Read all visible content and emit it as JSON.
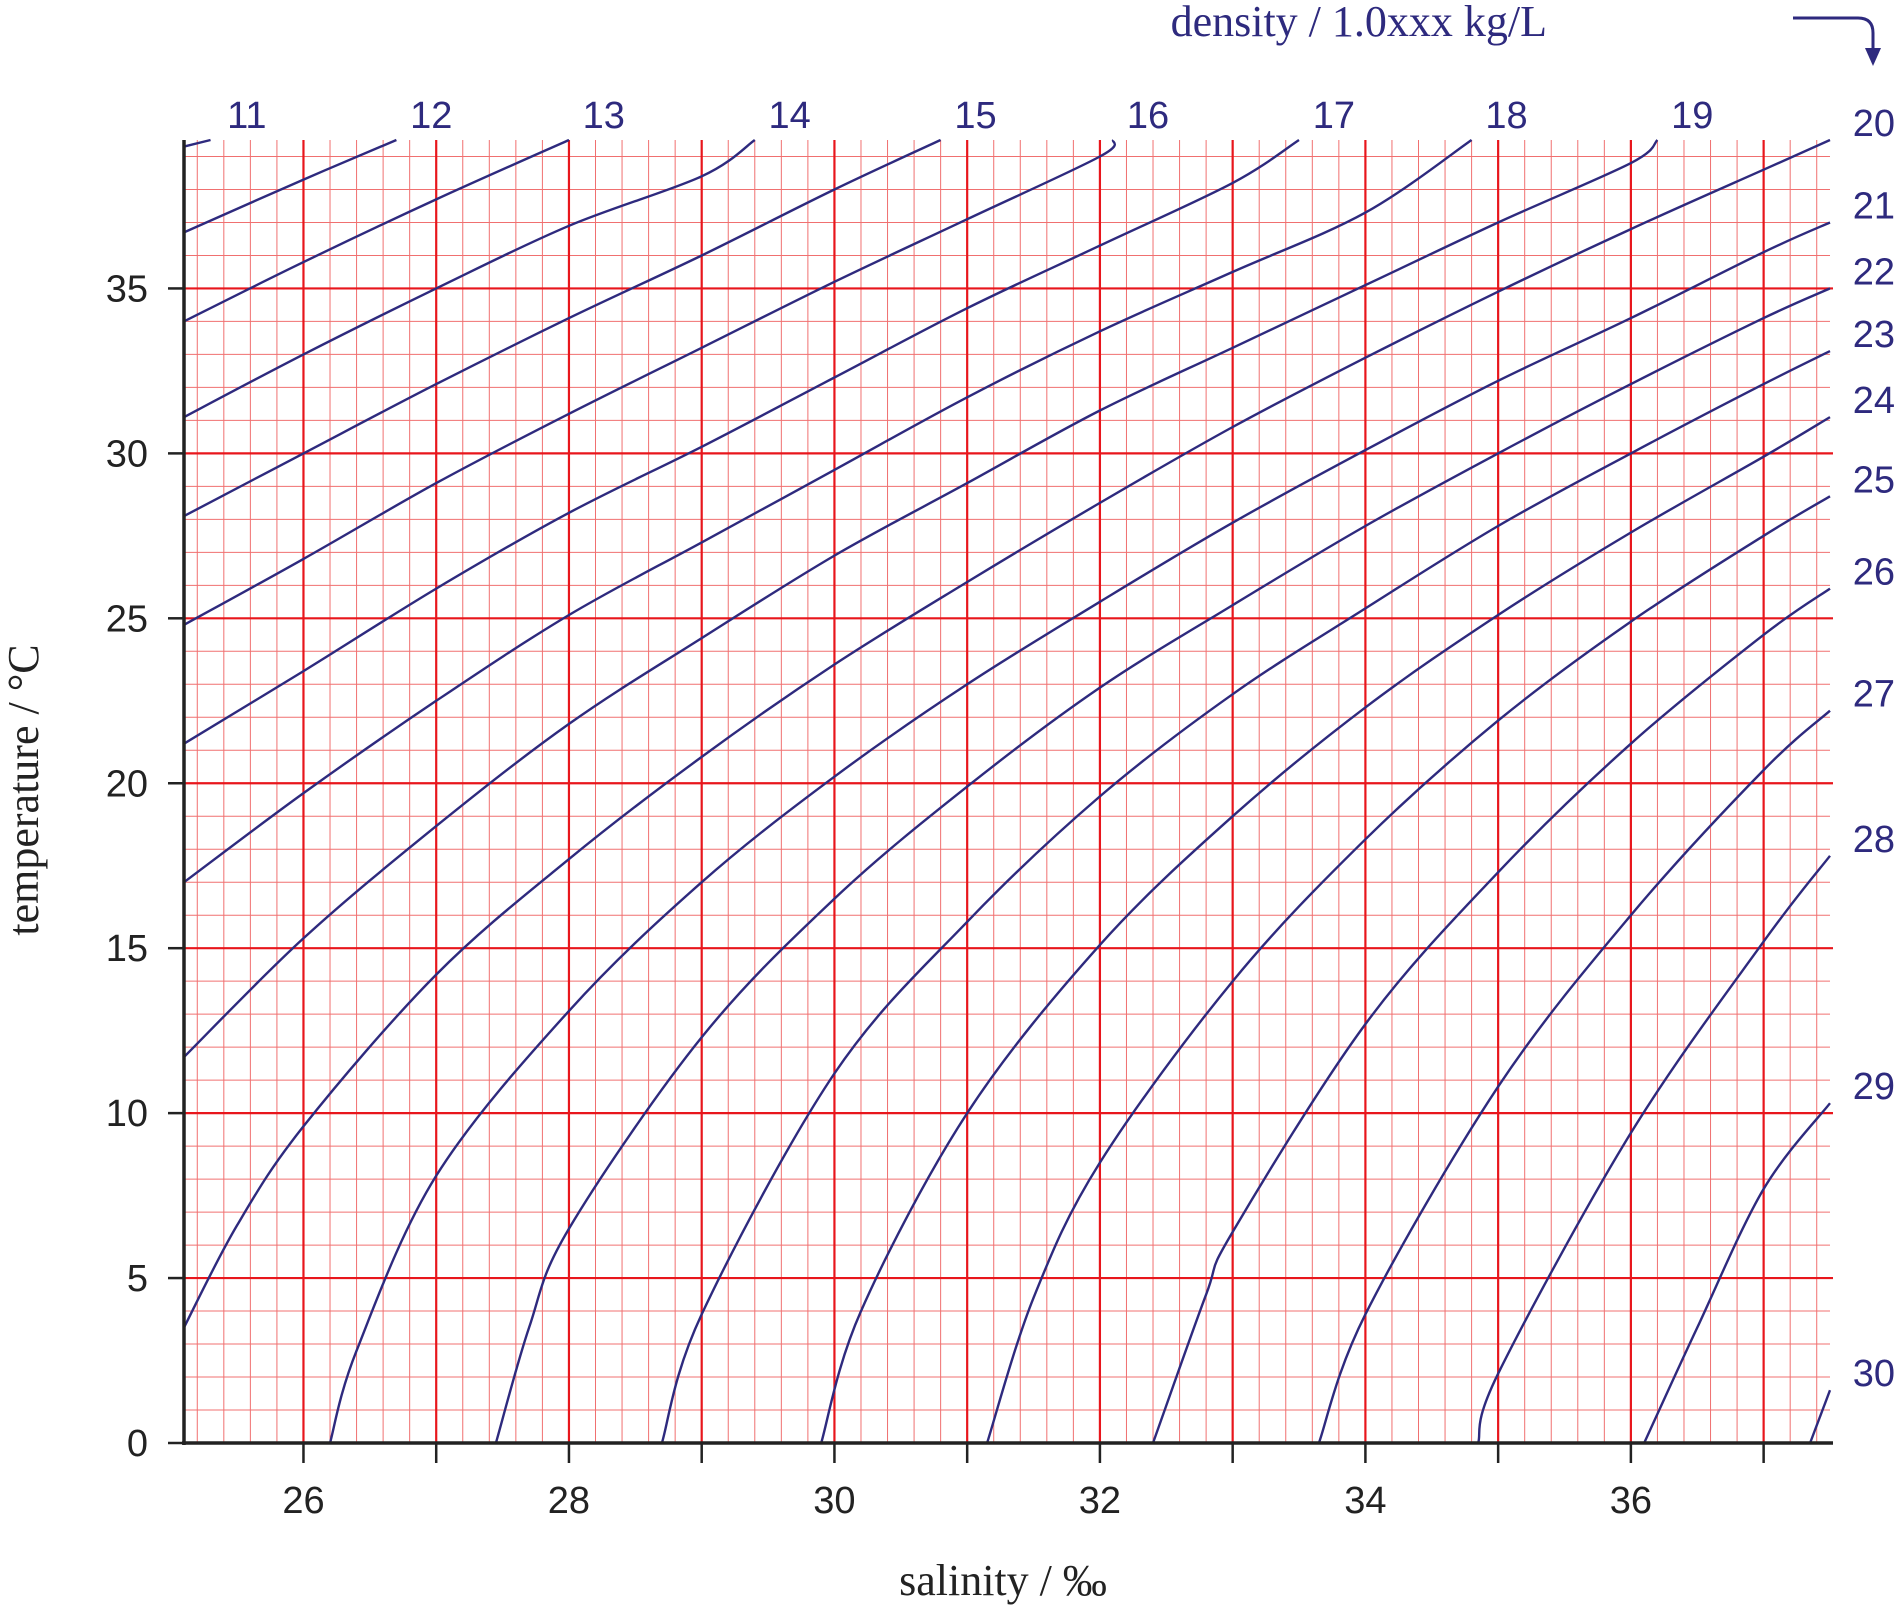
{
  "colors": {
    "grid_major": "#e8161c",
    "grid_minor": "#f07070",
    "curve": "#2e2a7e",
    "axis": "#222222"
  },
  "chart_data": {
    "type": "line",
    "xlabel": "salinity / ‰",
    "ylabel": "temperature / °C",
    "density_label": "density / 1.0xxx kg/L",
    "xlim": [
      25.1,
      37.5
    ],
    "ylim": [
      0,
      39.5
    ],
    "x_ticks": [
      26,
      28,
      30,
      32,
      34,
      36
    ],
    "y_ticks": [
      0,
      5,
      10,
      15,
      20,
      25,
      30,
      35
    ],
    "grid": "major every 1 ‰ and 5 °C, minor every 0.2 ‰ and 1 °C",
    "series_style": "isopycnals (lines of constant density)",
    "series": [
      {
        "name": "11",
        "points": [
          [
            25.1,
            39.3
          ],
          [
            25.3,
            39.5
          ]
        ]
      },
      {
        "name": "12",
        "points": [
          [
            25.1,
            36.7
          ],
          [
            26.0,
            38.3
          ],
          [
            26.7,
            39.5
          ]
        ]
      },
      {
        "name": "13",
        "points": [
          [
            25.1,
            34.0
          ],
          [
            26.0,
            35.8
          ],
          [
            27.0,
            37.7
          ],
          [
            28.0,
            39.5
          ]
        ]
      },
      {
        "name": "14",
        "points": [
          [
            25.1,
            31.1
          ],
          [
            26.0,
            33.0
          ],
          [
            27.0,
            35.0
          ],
          [
            28.0,
            36.9
          ],
          [
            29.0,
            38.4
          ],
          [
            29.4,
            39.5
          ]
        ]
      },
      {
        "name": "15",
        "points": [
          [
            25.1,
            28.1
          ],
          [
            26.0,
            30.0
          ],
          [
            27.0,
            32.1
          ],
          [
            28.0,
            34.1
          ],
          [
            29.0,
            36.0
          ],
          [
            30.0,
            38.0
          ],
          [
            30.8,
            39.5
          ]
        ]
      },
      {
        "name": "16",
        "points": [
          [
            25.1,
            24.8
          ],
          [
            26.0,
            26.8
          ],
          [
            27.0,
            29.1
          ],
          [
            28.0,
            31.2
          ],
          [
            29.0,
            33.2
          ],
          [
            30.0,
            35.2
          ],
          [
            31.0,
            37.1
          ],
          [
            32.0,
            39.0
          ],
          [
            32.1,
            39.5
          ]
        ]
      },
      {
        "name": "17",
        "points": [
          [
            25.1,
            21.2
          ],
          [
            26.0,
            23.4
          ],
          [
            27.0,
            25.9
          ],
          [
            28.0,
            28.2
          ],
          [
            29.0,
            30.2
          ],
          [
            30.0,
            32.3
          ],
          [
            31.0,
            34.4
          ],
          [
            32.0,
            36.3
          ],
          [
            33.0,
            38.2
          ],
          [
            33.5,
            39.5
          ]
        ]
      },
      {
        "name": "18",
        "points": [
          [
            25.1,
            17.0
          ],
          [
            26.0,
            19.7
          ],
          [
            27.0,
            22.5
          ],
          [
            28.0,
            25.1
          ],
          [
            29.0,
            27.3
          ],
          [
            30.0,
            29.5
          ],
          [
            31.0,
            31.7
          ],
          [
            32.0,
            33.7
          ],
          [
            33.0,
            35.5
          ],
          [
            34.0,
            37.3
          ],
          [
            34.8,
            39.5
          ]
        ]
      },
      {
        "name": "19",
        "points": [
          [
            25.1,
            11.7
          ],
          [
            26.0,
            15.3
          ],
          [
            27.0,
            18.7
          ],
          [
            28.0,
            21.8
          ],
          [
            29.0,
            24.4
          ],
          [
            30.0,
            26.9
          ],
          [
            31.0,
            29.1
          ],
          [
            32.0,
            31.3
          ],
          [
            33.0,
            33.2
          ],
          [
            34.0,
            35.1
          ],
          [
            35.0,
            37.0
          ],
          [
            36.0,
            38.8
          ],
          [
            36.2,
            39.5
          ]
        ]
      },
      {
        "name": "20",
        "points": [
          [
            25.1,
            3.5
          ],
          [
            25.5,
            6.6
          ],
          [
            26.0,
            9.6
          ],
          [
            27.0,
            14.2
          ],
          [
            28.0,
            17.7
          ],
          [
            29.0,
            20.8
          ],
          [
            30.0,
            23.6
          ],
          [
            31.0,
            26.1
          ],
          [
            32.0,
            28.5
          ],
          [
            33.0,
            30.8
          ],
          [
            34.0,
            32.9
          ],
          [
            35.0,
            34.9
          ],
          [
            36.0,
            36.8
          ],
          [
            37.0,
            38.6
          ],
          [
            37.5,
            39.5
          ]
        ]
      },
      {
        "name": "21",
        "points": [
          [
            26.2,
            0.0
          ],
          [
            26.4,
            2.8
          ],
          [
            27.0,
            8.1
          ],
          [
            28.0,
            13.1
          ],
          [
            29.0,
            17.0
          ],
          [
            30.0,
            20.2
          ],
          [
            31.0,
            23.0
          ],
          [
            32.0,
            25.5
          ],
          [
            33.0,
            27.9
          ],
          [
            34.0,
            30.1
          ],
          [
            35.0,
            32.2
          ],
          [
            36.0,
            34.1
          ],
          [
            37.0,
            36.1
          ],
          [
            37.5,
            37.0
          ]
        ]
      },
      {
        "name": "22",
        "points": [
          [
            27.45,
            0.0
          ],
          [
            27.7,
            3.5
          ],
          [
            28.0,
            6.5
          ],
          [
            29.0,
            12.3
          ],
          [
            30.0,
            16.5
          ],
          [
            31.0,
            19.9
          ],
          [
            32.0,
            22.9
          ],
          [
            33.0,
            25.4
          ],
          [
            34.0,
            27.8
          ],
          [
            35.0,
            30.0
          ],
          [
            36.0,
            32.1
          ],
          [
            37.0,
            34.1
          ],
          [
            37.5,
            35.0
          ]
        ]
      },
      {
        "name": "23",
        "points": [
          [
            28.7,
            0.0
          ],
          [
            29.0,
            3.9
          ],
          [
            30.0,
            11.2
          ],
          [
            31.0,
            15.8
          ],
          [
            32.0,
            19.6
          ],
          [
            33.0,
            22.7
          ],
          [
            34.0,
            25.3
          ],
          [
            35.0,
            27.8
          ],
          [
            36.0,
            30.0
          ],
          [
            37.0,
            32.1
          ],
          [
            37.5,
            33.1
          ]
        ]
      },
      {
        "name": "24",
        "points": [
          [
            29.9,
            0.0
          ],
          [
            30.2,
            4.0
          ],
          [
            31.0,
            10.0
          ],
          [
            32.0,
            15.1
          ],
          [
            33.0,
            19.0
          ],
          [
            34.0,
            22.3
          ],
          [
            35.0,
            25.1
          ],
          [
            36.0,
            27.6
          ],
          [
            37.0,
            29.9
          ],
          [
            37.5,
            31.1
          ]
        ]
      },
      {
        "name": "25",
        "points": [
          [
            31.15,
            0.0
          ],
          [
            31.5,
            4.4
          ],
          [
            32.0,
            8.5
          ],
          [
            33.0,
            14.0
          ],
          [
            34.0,
            18.3
          ],
          [
            35.0,
            21.9
          ],
          [
            36.0,
            24.9
          ],
          [
            37.0,
            27.5
          ],
          [
            37.5,
            28.7
          ]
        ]
      },
      {
        "name": "26",
        "points": [
          [
            32.4,
            0.0
          ],
          [
            32.8,
            4.5
          ],
          [
            33.0,
            6.4
          ],
          [
            34.0,
            12.7
          ],
          [
            35.0,
            17.3
          ],
          [
            36.0,
            21.2
          ],
          [
            37.0,
            24.5
          ],
          [
            37.5,
            25.9
          ]
        ]
      },
      {
        "name": "27",
        "points": [
          [
            33.65,
            0.0
          ],
          [
            34.0,
            3.9
          ],
          [
            35.0,
            10.8
          ],
          [
            36.0,
            16.0
          ],
          [
            37.0,
            20.4
          ],
          [
            37.5,
            22.2
          ]
        ]
      },
      {
        "name": "28",
        "points": [
          [
            34.85,
            0.0
          ],
          [
            35.0,
            2.1
          ],
          [
            36.0,
            9.4
          ],
          [
            37.0,
            15.2
          ],
          [
            37.5,
            17.8
          ]
        ]
      },
      {
        "name": "29",
        "points": [
          [
            36.1,
            0.0
          ],
          [
            36.5,
            3.5
          ],
          [
            37.0,
            7.7
          ],
          [
            37.5,
            10.3
          ]
        ]
      },
      {
        "name": "30",
        "points": [
          [
            37.35,
            0.0
          ],
          [
            37.5,
            1.6
          ]
        ]
      }
    ]
  }
}
